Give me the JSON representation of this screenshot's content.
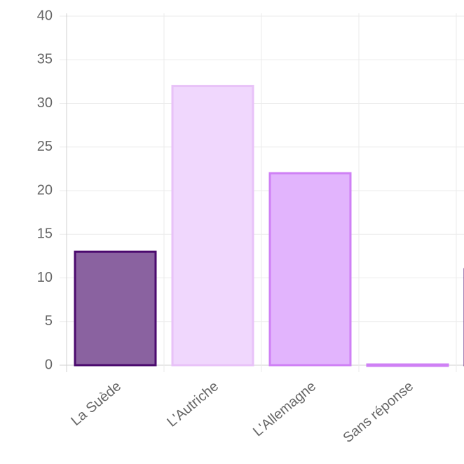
{
  "chart_data": {
    "type": "bar",
    "categories": [
      "La Suède",
      "L'Autriche",
      "L'Allemagne",
      "Sans réponse",
      null
    ],
    "values": [
      13,
      32,
      22,
      0,
      11
    ],
    "colors": [
      "#8a62a0",
      "#f0d7fd",
      "#e2b4fd",
      "#cf80f5",
      "#8a62a0"
    ],
    "border_colors": [
      "#4b0a6e",
      "#e8c2f8",
      "#cf80f5",
      "#cf80f5",
      "#4b0a6e"
    ],
    "ylim": [
      0,
      40
    ],
    "yticks": [
      0,
      5,
      10,
      15,
      20,
      25,
      30,
      35,
      40
    ],
    "grid": true
  }
}
